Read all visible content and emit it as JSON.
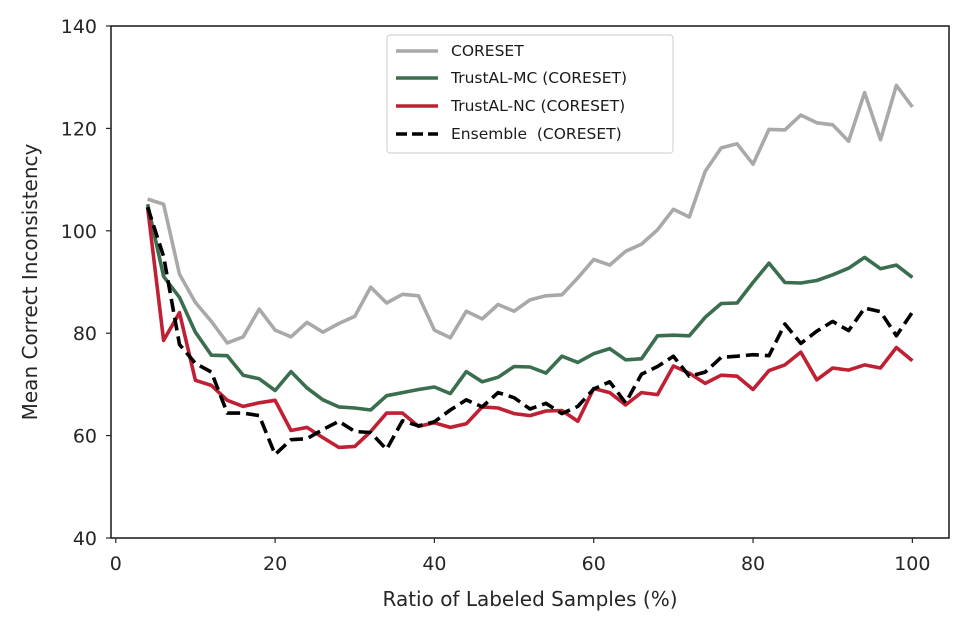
{
  "chart_data": {
    "type": "line",
    "title": "",
    "xlabel": "Ratio of Labeled Samples (%)",
    "ylabel": "Mean Correct Inconsistency",
    "xlim": [
      -0.6,
      104.6
    ],
    "ylim": [
      40,
      140
    ],
    "xticks": [
      0,
      20,
      40,
      60,
      80,
      100
    ],
    "yticks": [
      40,
      60,
      80,
      100,
      120,
      140
    ],
    "grid": false,
    "legend_position": "top-center",
    "x": [
      4,
      6,
      8,
      10,
      12,
      14,
      16,
      18,
      20,
      22,
      24,
      26,
      28,
      30,
      32,
      34,
      36,
      38,
      40,
      42,
      44,
      46,
      48,
      50,
      52,
      54,
      56,
      58,
      60,
      62,
      64,
      66,
      68,
      70,
      72,
      74,
      76,
      78,
      80,
      82,
      84,
      86,
      88,
      90,
      92,
      94,
      96,
      98,
      100
    ],
    "series": [
      {
        "name": "CORESET",
        "color": "#a9a9a9",
        "style": "solid",
        "values": [
          106.2,
          105.2,
          91.5,
          86.0,
          82.3,
          78.1,
          79.3,
          84.7,
          80.6,
          79.3,
          82.1,
          80.2,
          81.9,
          83.3,
          89.0,
          85.9,
          87.6,
          87.3,
          80.6,
          79.1,
          84.3,
          82.8,
          85.6,
          84.3,
          86.5,
          87.3,
          87.5,
          90.8,
          94.4,
          93.3,
          96.0,
          97.4,
          100.2,
          104.2,
          102.7,
          111.6,
          116.2,
          117.0,
          113.0,
          119.8,
          119.7,
          122.6,
          121.1,
          120.7,
          117.5,
          127.0,
          117.8,
          128.4,
          124.2
        ]
      },
      {
        "name": "TrustAL-MC (CORESET)",
        "color": "#3a6e4f",
        "style": "solid",
        "values": [
          105.2,
          91.1,
          87.0,
          80.2,
          75.7,
          75.6,
          71.8,
          71.1,
          68.8,
          72.5,
          69.3,
          67.0,
          65.6,
          65.4,
          65.0,
          67.8,
          68.4,
          69.0,
          69.5,
          68.2,
          72.5,
          70.5,
          71.4,
          73.5,
          73.4,
          72.2,
          75.5,
          74.3,
          76.0,
          77.0,
          74.8,
          75.0,
          79.5,
          79.6,
          79.5,
          83.1,
          85.8,
          85.9,
          89.9,
          93.7,
          89.9,
          89.8,
          90.3,
          91.4,
          92.7,
          94.8,
          92.6,
          93.3,
          90.9
        ]
      },
      {
        "name": "TrustAL-NC (CORESET)",
        "color": "#bf2034",
        "style": "solid",
        "values": [
          104.6,
          78.6,
          84.0,
          70.8,
          69.8,
          66.9,
          65.7,
          66.4,
          66.9,
          61.0,
          61.6,
          59.6,
          57.7,
          57.9,
          60.8,
          64.4,
          64.4,
          61.8,
          62.5,
          61.6,
          62.3,
          65.6,
          65.4,
          64.3,
          63.9,
          64.8,
          64.9,
          62.8,
          69.2,
          68.4,
          66.0,
          68.4,
          68.0,
          73.6,
          72.2,
          70.2,
          71.8,
          71.6,
          69.0,
          72.7,
          73.8,
          76.3,
          70.9,
          73.2,
          72.8,
          73.8,
          73.2,
          77.2,
          74.6
        ]
      },
      {
        "name": "Ensemble  (CORESET)",
        "color": "#000000",
        "style": "dashed",
        "values": [
          104.6,
          95.0,
          77.8,
          74.1,
          72.4,
          64.4,
          64.4,
          63.9,
          56.3,
          59.2,
          59.4,
          61.2,
          62.8,
          60.8,
          60.6,
          57.3,
          62.9,
          61.9,
          62.7,
          65.0,
          67.0,
          65.6,
          68.4,
          67.4,
          65.2,
          66.3,
          64.3,
          65.7,
          69.1,
          70.5,
          66.4,
          72.0,
          73.5,
          75.5,
          71.6,
          72.4,
          75.3,
          75.5,
          75.8,
          75.6,
          81.8,
          78.0,
          80.4,
          82.3,
          80.5,
          84.9,
          84.2,
          79.5,
          84.1
        ]
      }
    ]
  }
}
